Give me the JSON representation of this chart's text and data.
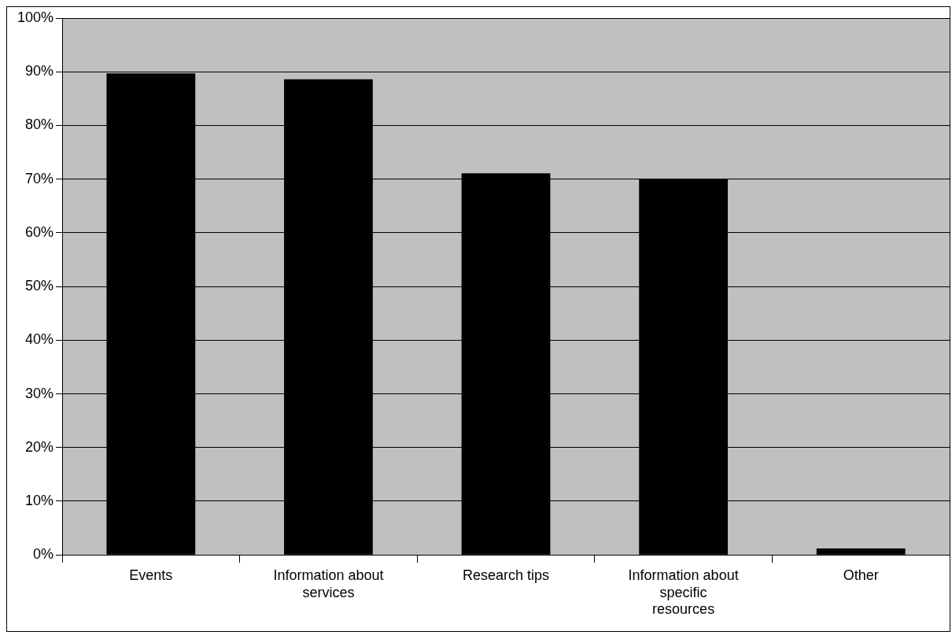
{
  "chart_data": {
    "type": "bar",
    "categories": [
      "Events",
      "Information about services",
      "Research tips",
      "Information about specific resources",
      "Other"
    ],
    "values": [
      89.7,
      88.6,
      71.1,
      70,
      1.2
    ],
    "color": "#000000",
    "ylim": [
      0,
      100
    ],
    "yticks": [
      {
        "value": 0,
        "label": "0%"
      },
      {
        "value": 10,
        "label": "10%"
      },
      {
        "value": 20,
        "label": "20%"
      },
      {
        "value": 30,
        "label": "30%"
      },
      {
        "value": 40,
        "label": "40%"
      },
      {
        "value": 50,
        "label": "50%"
      },
      {
        "value": 60,
        "label": "60%"
      },
      {
        "value": 70,
        "label": "70%"
      },
      {
        "value": 80,
        "label": "80%"
      },
      {
        "value": 90,
        "label": "90%"
      },
      {
        "value": 100,
        "label": "100%"
      }
    ],
    "grid": "y",
    "legend": false
  }
}
